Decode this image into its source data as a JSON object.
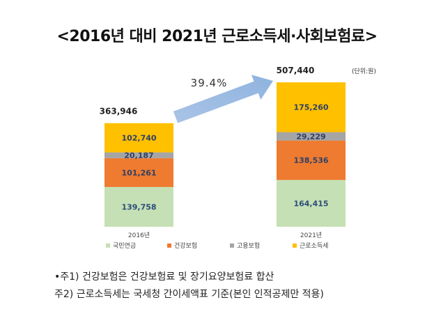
{
  "title": "<2016년 대비 2021년 근로소득세·사회보험료>",
  "chart_data": {
    "type": "bar",
    "stacked": true,
    "categories": [
      "2016년",
      "2021년"
    ],
    "series": [
      {
        "name": "국민연금",
        "values": [
          139758,
          164415
        ],
        "color": "#c5e0b4"
      },
      {
        "name": "건강보험",
        "values": [
          101261,
          138536
        ],
        "color": "#ee7b30"
      },
      {
        "name": "고용보험",
        "values": [
          20187,
          29229
        ],
        "color": "#a5a5a5"
      },
      {
        "name": "근로소득세",
        "values": [
          102740,
          175260
        ],
        "color": "#ffc000"
      }
    ],
    "value_labels": [
      [
        "139,758",
        "101,261",
        "20,187",
        "102,740"
      ],
      [
        "164,415",
        "138,536",
        "29,229",
        "175,260"
      ]
    ],
    "totals": [
      "363,946",
      "507,440"
    ],
    "total_values": [
      363946,
      507440
    ],
    "growth_label": "39.4%",
    "unit_label": "(단위:원)",
    "ylim": [
      0,
      507440
    ],
    "legend_position": "bottom",
    "grid": false
  },
  "notes": [
    "•주1) 건강보험은 건강보험료 및 장기요양보험료 합산",
    "주2) 근로소득세는 국세청 간이세액표 기준(본인 인적공제만 적용)"
  ]
}
